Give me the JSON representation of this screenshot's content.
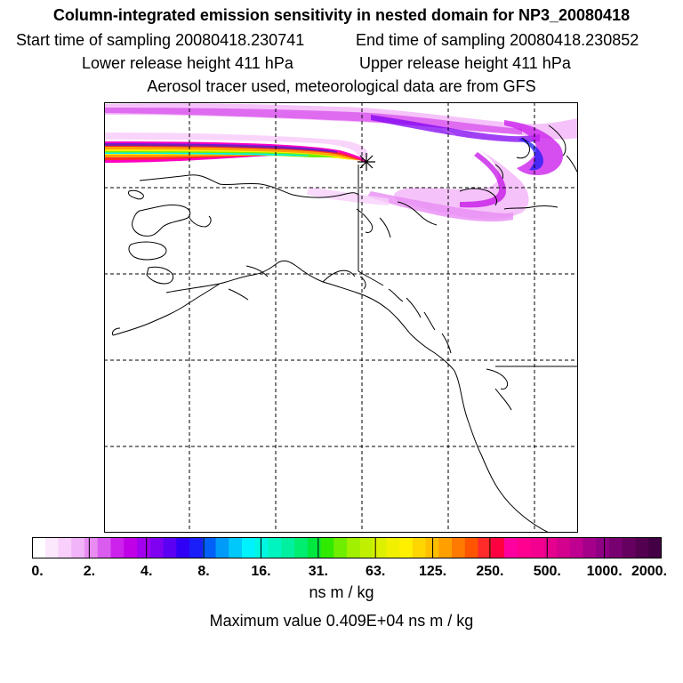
{
  "header": {
    "title": "Column-integrated emission sensitivity in nested domain for NP3_20080418",
    "start_time": "Start time of sampling 20080418.230741",
    "end_time": "End time of sampling 20080418.230852",
    "lower_height": "Lower release height  411 hPa",
    "upper_height": "Upper release height  411 hPa",
    "tracer_info": "Aerosol tracer used, meteorological data are from GFS"
  },
  "colorbar": {
    "tick_labels": [
      "0.",
      "2.",
      "4.",
      "8.",
      "16.",
      "31.",
      "63.",
      "125.",
      "250.",
      "500.",
      "1000.",
      "2000."
    ],
    "colors": [
      "#ffffff",
      "#fce8fd",
      "#f8d0fb",
      "#f2b4f8",
      "#e88cf4",
      "#da5cef",
      "#cc22ec",
      "#c000e6",
      "#a200ee",
      "#8000f2",
      "#5c00f4",
      "#3000f6",
      "#1a1ef8",
      "#0060f8",
      "#009af8",
      "#00c8fa",
      "#00f2ff",
      "#00f6e0",
      "#00f4c0",
      "#00f0a0",
      "#00ee70",
      "#00e840",
      "#30ea00",
      "#70ee00",
      "#a0f000",
      "#c0f000",
      "#dcf000",
      "#f0f000",
      "#fff000",
      "#ffd600",
      "#ffbe00",
      "#ffa000",
      "#ff7a00",
      "#ff5400",
      "#ff2a2a",
      "#ff0040",
      "#ff00a0",
      "#ff0090",
      "#f40090",
      "#e6008e",
      "#d4008e",
      "#c00090",
      "#a4008a",
      "#8e0084",
      "#780070",
      "#660060",
      "#540050",
      "#440044"
    ],
    "units": "ns m / kg",
    "max_value": "Maximum value  0.409E+04 ns m / kg"
  },
  "map": {
    "release_point": "release-location-marker",
    "plume_colors": [
      "#ff00c0",
      "#ff2a2a",
      "#ffa000",
      "#fff000",
      "#70ee00",
      "#00f2ff",
      "#1a1ef8",
      "#c000e6"
    ]
  }
}
